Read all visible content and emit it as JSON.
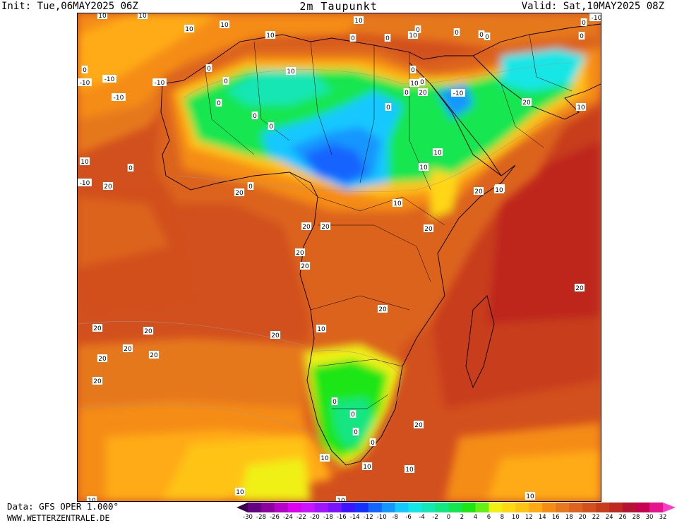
{
  "header": {
    "init": "Init: Tue,06MAY2025 06Z",
    "title": "2m Taupunkt",
    "valid": "Valid: Sat,10MAY2025 08Z"
  },
  "footer": {
    "data_source": "Data: GFS OPER 1.000°",
    "website": "WWW.WETTERZENTRALE.DE"
  },
  "legend": {
    "ticks": [
      "-30",
      "-28",
      "-26",
      "-24",
      "-22",
      "-20",
      "-18",
      "-16",
      "-14",
      "-12",
      "-10",
      "-8",
      "-6",
      "-4",
      "-2",
      "0",
      "2",
      "4",
      "6",
      "8",
      "10",
      "12",
      "14",
      "16",
      "18",
      "20",
      "22",
      "24",
      "26",
      "28",
      "30",
      "32"
    ],
    "colors": [
      "#3c0050",
      "#640082",
      "#8c00a0",
      "#b400c8",
      "#dc00f0",
      "#c814ff",
      "#a014ff",
      "#7814ff",
      "#3c14ff",
      "#1432ff",
      "#1464ff",
      "#1496ff",
      "#14c8ff",
      "#14e6e6",
      "#14e6b4",
      "#14e682",
      "#14e650",
      "#1ee614",
      "#64f014",
      "#f0f014",
      "#ffd714",
      "#ffc314",
      "#ffaa14",
      "#f58c14",
      "#e6781e",
      "#dc641e",
      "#d2501e",
      "#c83c1e",
      "#be281e",
      "#b41432",
      "#c80050",
      "#e6148c",
      "#ff3cc8"
    ]
  },
  "map_labels": [
    {
      "t": "10"
    },
    {
      "t": "10"
    },
    {
      "t": "10"
    },
    {
      "t": "10"
    },
    {
      "t": "10"
    },
    {
      "t": "10"
    },
    {
      "t": "10"
    },
    {
      "t": "0"
    },
    {
      "t": "0"
    },
    {
      "t": "0"
    },
    {
      "t": "0"
    },
    {
      "t": "-10"
    },
    {
      "t": "0"
    },
    {
      "t": "-10"
    },
    {
      "t": "-10"
    },
    {
      "t": "-10"
    },
    {
      "t": "0"
    },
    {
      "t": "0"
    },
    {
      "t": "0"
    },
    {
      "t": "0"
    },
    {
      "t": "0"
    },
    {
      "t": "10"
    },
    {
      "t": "0"
    },
    {
      "t": "-10"
    },
    {
      "t": "0"
    },
    {
      "t": "10"
    },
    {
      "t": "0"
    },
    {
      "t": "0"
    },
    {
      "t": "-10"
    },
    {
      "t": "-10"
    },
    {
      "t": "10"
    },
    {
      "t": "0"
    },
    {
      "t": "0"
    },
    {
      "t": "10"
    },
    {
      "t": "20"
    },
    {
      "t": "10"
    },
    {
      "t": "20"
    },
    {
      "t": "10"
    },
    {
      "t": "20"
    },
    {
      "t": "20"
    },
    {
      "t": "20"
    },
    {
      "t": "20"
    },
    {
      "t": "20"
    },
    {
      "t": "20"
    },
    {
      "t": "20"
    },
    {
      "t": "20"
    },
    {
      "t": "10"
    },
    {
      "t": "20"
    },
    {
      "t": "20"
    },
    {
      "t": "20"
    },
    {
      "t": "20"
    },
    {
      "t": "20"
    },
    {
      "t": "20"
    },
    {
      "t": "20"
    },
    {
      "t": "20"
    },
    {
      "t": "0"
    },
    {
      "t": "0"
    },
    {
      "t": "0"
    },
    {
      "t": "0"
    },
    {
      "t": "20"
    },
    {
      "t": "10"
    },
    {
      "t": "10"
    },
    {
      "t": "10"
    },
    {
      "t": "10"
    },
    {
      "t": "10"
    },
    {
      "t": "10"
    },
    {
      "t": "10"
    },
    {
      "t": "0"
    },
    {
      "t": "0"
    },
    {
      "t": "0"
    },
    {
      "t": "0"
    },
    {
      "t": "10"
    },
    {
      "t": "10"
    },
    {
      "t": "10"
    },
    {
      "t": "20"
    }
  ]
}
